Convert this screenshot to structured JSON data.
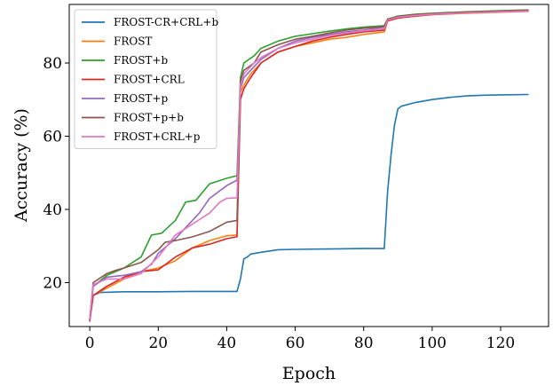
{
  "chart_data": {
    "type": "line",
    "title": "",
    "xlabel": "Epoch",
    "ylabel": "Accuracy (%)",
    "xlim": [
      -6,
      134
    ],
    "ylim": [
      8,
      96
    ],
    "x_ticks": [
      0,
      20,
      40,
      60,
      80,
      100,
      120
    ],
    "y_ticks": [
      20,
      40,
      60,
      80
    ],
    "grid": false,
    "legend_position": "top-left",
    "series": [
      {
        "name": "FROST-CR+CRL+b",
        "color": "#1f77b4",
        "points": [
          [
            0,
            9.5
          ],
          [
            1,
            16.5
          ],
          [
            3,
            17.3
          ],
          [
            10,
            17.5
          ],
          [
            20,
            17.5
          ],
          [
            30,
            17.6
          ],
          [
            43,
            17.6
          ],
          [
            44,
            21
          ],
          [
            45,
            26.5
          ],
          [
            46,
            27
          ],
          [
            47,
            27.8
          ],
          [
            50,
            28.3
          ],
          [
            55,
            29
          ],
          [
            60,
            29.1
          ],
          [
            70,
            29.2
          ],
          [
            80,
            29.3
          ],
          [
            86,
            29.3
          ],
          [
            87,
            45
          ],
          [
            88,
            55
          ],
          [
            89,
            63
          ],
          [
            90,
            67.5
          ],
          [
            91,
            68.2
          ],
          [
            95,
            69.2
          ],
          [
            100,
            70
          ],
          [
            105,
            70.6
          ],
          [
            110,
            71
          ],
          [
            115,
            71.2
          ],
          [
            120,
            71.3
          ],
          [
            128,
            71.4
          ]
        ]
      },
      {
        "name": "FROST",
        "color": "#ff7f0e",
        "points": [
          [
            0,
            10
          ],
          [
            1,
            16.5
          ],
          [
            5,
            18.5
          ],
          [
            10,
            21
          ],
          [
            15,
            23
          ],
          [
            20,
            24
          ],
          [
            25,
            26
          ],
          [
            30,
            29.5
          ],
          [
            35,
            31.5
          ],
          [
            40,
            32.8
          ],
          [
            43,
            33
          ],
          [
            44,
            72
          ],
          [
            45,
            74
          ],
          [
            47,
            77
          ],
          [
            50,
            80
          ],
          [
            55,
            83
          ],
          [
            60,
            84.5
          ],
          [
            65,
            85.5
          ],
          [
            70,
            86.5
          ],
          [
            75,
            87
          ],
          [
            80,
            87.8
          ],
          [
            86,
            88.5
          ],
          [
            87,
            91.5
          ],
          [
            90,
            92.3
          ],
          [
            95,
            92.8
          ],
          [
            100,
            93.2
          ],
          [
            110,
            93.6
          ],
          [
            120,
            93.9
          ],
          [
            128,
            94.1
          ]
        ]
      },
      {
        "name": "FROST+b",
        "color": "#2ca02c",
        "points": [
          [
            0,
            10
          ],
          [
            1,
            19
          ],
          [
            5,
            22
          ],
          [
            10,
            24
          ],
          [
            15,
            27
          ],
          [
            18,
            33
          ],
          [
            21,
            33.5
          ],
          [
            25,
            37
          ],
          [
            28,
            42
          ],
          [
            31,
            42.5
          ],
          [
            35,
            47
          ],
          [
            40,
            48.5
          ],
          [
            43,
            49.2
          ],
          [
            44,
            76
          ],
          [
            45,
            80
          ],
          [
            48,
            82
          ],
          [
            50,
            84
          ],
          [
            55,
            86
          ],
          [
            60,
            87.3
          ],
          [
            65,
            88
          ],
          [
            70,
            88.7
          ],
          [
            75,
            89.3
          ],
          [
            80,
            89.8
          ],
          [
            86,
            90.2
          ],
          [
            87,
            92
          ],
          [
            90,
            92.8
          ],
          [
            95,
            93.3
          ],
          [
            100,
            93.6
          ],
          [
            110,
            94
          ],
          [
            120,
            94.3
          ],
          [
            128,
            94.5
          ]
        ]
      },
      {
        "name": "FROST+CRL",
        "color": "#d62728",
        "points": [
          [
            0,
            9.5
          ],
          [
            1,
            16.5
          ],
          [
            5,
            19
          ],
          [
            10,
            21.5
          ],
          [
            15,
            23
          ],
          [
            20,
            23.5
          ],
          [
            25,
            27
          ],
          [
            30,
            29.5
          ],
          [
            35,
            30.5
          ],
          [
            40,
            32
          ],
          [
            43,
            32.5
          ],
          [
            44,
            70
          ],
          [
            45,
            73
          ],
          [
            47,
            76
          ],
          [
            50,
            80
          ],
          [
            55,
            83
          ],
          [
            60,
            84.5
          ],
          [
            65,
            86
          ],
          [
            70,
            87
          ],
          [
            75,
            87.8
          ],
          [
            80,
            88.5
          ],
          [
            86,
            89
          ],
          [
            87,
            91.5
          ],
          [
            90,
            92.3
          ],
          [
            95,
            92.8
          ],
          [
            100,
            93.2
          ],
          [
            110,
            93.7
          ],
          [
            120,
            94
          ],
          [
            128,
            94.2
          ]
        ]
      },
      {
        "name": "FROST+p",
        "color": "#9467bd",
        "points": [
          [
            0,
            10
          ],
          [
            1,
            19
          ],
          [
            5,
            21.5
          ],
          [
            10,
            22
          ],
          [
            15,
            23
          ],
          [
            18,
            25
          ],
          [
            20,
            28
          ],
          [
            25,
            32
          ],
          [
            28,
            35
          ],
          [
            32,
            39
          ],
          [
            35,
            43
          ],
          [
            40,
            46.5
          ],
          [
            43,
            48
          ],
          [
            44,
            73
          ],
          [
            45,
            76
          ],
          [
            48,
            79
          ],
          [
            50,
            81
          ],
          [
            55,
            84
          ],
          [
            60,
            86
          ],
          [
            65,
            87
          ],
          [
            70,
            87.8
          ],
          [
            75,
            88.5
          ],
          [
            80,
            89
          ],
          [
            86,
            89.8
          ],
          [
            87,
            91.8
          ],
          [
            90,
            92.5
          ],
          [
            95,
            93
          ],
          [
            100,
            93.4
          ],
          [
            110,
            93.8
          ],
          [
            120,
            94.1
          ],
          [
            128,
            94.3
          ]
        ]
      },
      {
        "name": "FROST+p+b",
        "color": "#8c564b",
        "points": [
          [
            0,
            10
          ],
          [
            1,
            20
          ],
          [
            5,
            22.5
          ],
          [
            8,
            23.5
          ],
          [
            10,
            24
          ],
          [
            15,
            25.5
          ],
          [
            20,
            29
          ],
          [
            22,
            31
          ],
          [
            25,
            31.5
          ],
          [
            30,
            32.5
          ],
          [
            35,
            34
          ],
          [
            40,
            36.5
          ],
          [
            43,
            37
          ],
          [
            44,
            75
          ],
          [
            45,
            78
          ],
          [
            48,
            80
          ],
          [
            50,
            83
          ],
          [
            55,
            85
          ],
          [
            60,
            86.5
          ],
          [
            65,
            87.3
          ],
          [
            70,
            88.2
          ],
          [
            75,
            89
          ],
          [
            80,
            89.5
          ],
          [
            86,
            90
          ],
          [
            87,
            92
          ],
          [
            90,
            92.7
          ],
          [
            95,
            93.2
          ],
          [
            100,
            93.5
          ],
          [
            110,
            93.9
          ],
          [
            120,
            94.2
          ],
          [
            128,
            94.4
          ]
        ]
      },
      {
        "name": "FROST+CRL+p",
        "color": "#e377c2",
        "points": [
          [
            0,
            10
          ],
          [
            1,
            19.5
          ],
          [
            5,
            21
          ],
          [
            10,
            21
          ],
          [
            15,
            22.5
          ],
          [
            20,
            27
          ],
          [
            25,
            33
          ],
          [
            30,
            36
          ],
          [
            35,
            39
          ],
          [
            38,
            42
          ],
          [
            40,
            43
          ],
          [
            43,
            43.2
          ],
          [
            44,
            74
          ],
          [
            45,
            77
          ],
          [
            48,
            80
          ],
          [
            50,
            81.5
          ],
          [
            55,
            84
          ],
          [
            60,
            85.5
          ],
          [
            65,
            86.5
          ],
          [
            70,
            87.5
          ],
          [
            75,
            88.2
          ],
          [
            80,
            88.8
          ],
          [
            86,
            89.3
          ],
          [
            87,
            91.7
          ],
          [
            90,
            92.5
          ],
          [
            95,
            93
          ],
          [
            100,
            93.3
          ],
          [
            110,
            93.7
          ],
          [
            120,
            94
          ],
          [
            128,
            94.2
          ]
        ]
      }
    ]
  }
}
